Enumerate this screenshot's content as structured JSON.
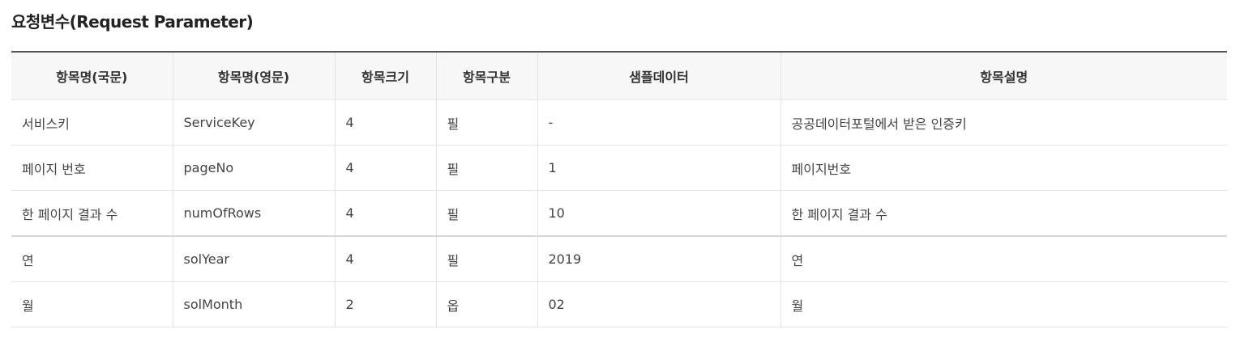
{
  "section": {
    "title": "요청변수(Request Parameter)"
  },
  "table": {
    "headers": [
      "항목명(국문)",
      "항목명(영문)",
      "항목크기",
      "항목구분",
      "샘플데이터",
      "항목설명"
    ],
    "rows": [
      [
        "서비스키",
        "ServiceKey",
        "4",
        "필",
        "-",
        "공공데이터포털에서 받은 인증키"
      ],
      [
        "페이지 번호",
        "pageNo",
        "4",
        "필",
        "1",
        "페이지번호"
      ],
      [
        "한 페이지 결과 수",
        "numOfRows",
        "4",
        "필",
        "10",
        "한 페이지 결과 수"
      ],
      [
        "연",
        "solYear",
        "4",
        "필",
        "2019",
        "연"
      ],
      [
        "월",
        "solMonth",
        "2",
        "옵",
        "02",
        "월"
      ]
    ]
  }
}
